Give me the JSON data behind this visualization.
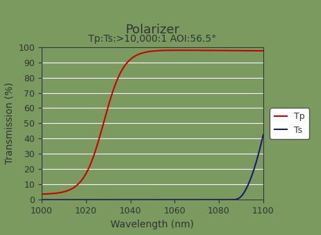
{
  "title": "Polarizer",
  "subtitle": "Tp:Ts:>10,000:1 AOI:56.5°",
  "xlabel": "Wavelength (nm)",
  "ylabel": "Transmission (%)",
  "xlim": [
    1000,
    1100
  ],
  "ylim": [
    0,
    100
  ],
  "xticks": [
    1000,
    1020,
    1040,
    1060,
    1080,
    1100
  ],
  "yticks": [
    0,
    10,
    20,
    30,
    40,
    50,
    60,
    70,
    80,
    90,
    100
  ],
  "bg_color": "#7a9a60",
  "fig_bg_color": "#7a9a60",
  "tp_color": "#cc0000",
  "ts_color": "#1a1a6e",
  "legend_labels": [
    "Tp",
    "Ts"
  ],
  "title_fontsize": 13,
  "subtitle_fontsize": 10,
  "axis_label_fontsize": 10,
  "tick_fontsize": 9,
  "title_color": "#333333",
  "subtitle_color": "#333333"
}
